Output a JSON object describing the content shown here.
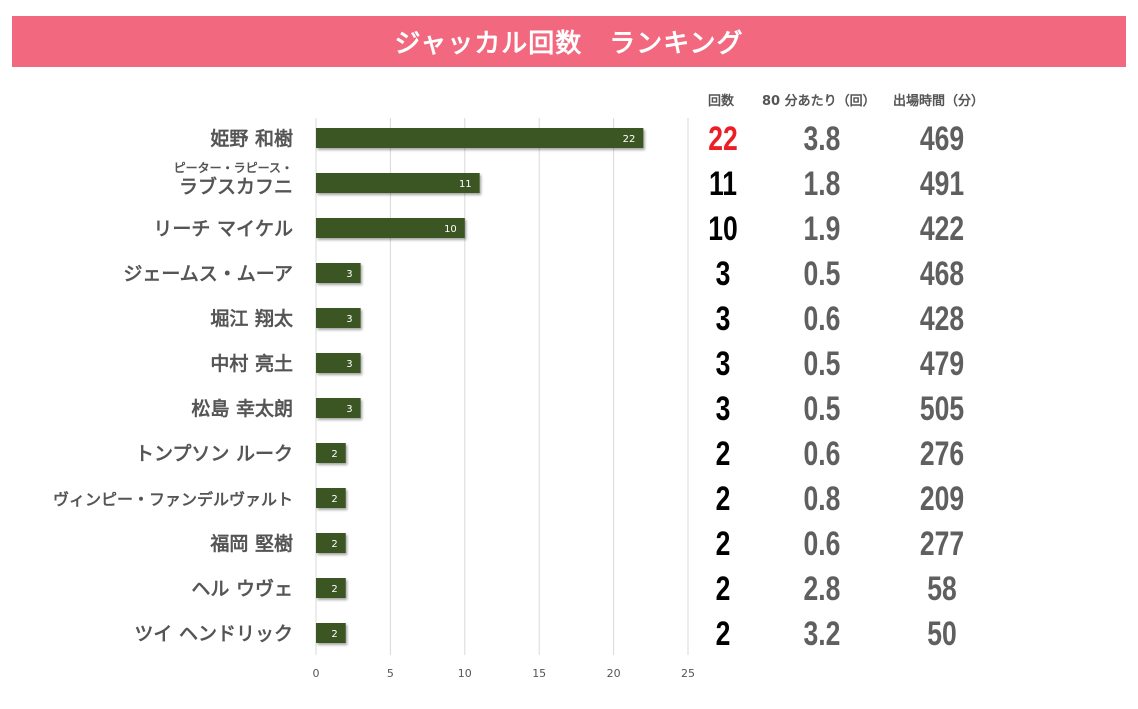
{
  "title": "ジャッカル回数　ランキング",
  "colors": {
    "banner": "#f2687e",
    "bar": "#3a5623",
    "top_count": "#ee1c24",
    "count": "#000000",
    "stat": "#5f5f5f",
    "grid": "#d9d9d9"
  },
  "table": {
    "headers": {
      "count": "回数",
      "per80": "80 分あたり（回）",
      "minutes": "出場時間（分）"
    },
    "rows": [
      {
        "name": "姫野 和樹",
        "count": "22",
        "per80": "3.8",
        "minutes": "469"
      },
      {
        "name_line1": "ピーター・ラピース・",
        "name": "ラブスカフニ",
        "count": "11",
        "per80": "1.8",
        "minutes": "491"
      },
      {
        "name": "リーチ マイケル",
        "count": "10",
        "per80": "1.9",
        "minutes": "422"
      },
      {
        "name": "ジェームス・ムーア",
        "count": "3",
        "per80": "0.5",
        "minutes": "468"
      },
      {
        "name": "堀江 翔太",
        "count": "3",
        "per80": "0.6",
        "minutes": "428"
      },
      {
        "name": "中村 亮土",
        "count": "3",
        "per80": "0.5",
        "minutes": "479"
      },
      {
        "name": "松島 幸太朗",
        "count": "3",
        "per80": "0.5",
        "minutes": "505"
      },
      {
        "name": "トンプソン ルーク",
        "count": "2",
        "per80": "0.6",
        "minutes": "276"
      },
      {
        "name": "ヴィンピー・ファンデルヴァルト",
        "count": "2",
        "per80": "0.8",
        "minutes": "209"
      },
      {
        "name": "福岡 堅樹",
        "count": "2",
        "per80": "0.6",
        "minutes": "277"
      },
      {
        "name": "ヘル ウヴェ",
        "count": "2",
        "per80": "2.8",
        "minutes": "58"
      },
      {
        "name": "ツイ ヘンドリック",
        "count": "2",
        "per80": "3.2",
        "minutes": "50"
      }
    ]
  },
  "chart_data": {
    "type": "bar",
    "orientation": "horizontal",
    "title": "ジャッカル回数　ランキング",
    "xlabel": "",
    "ylabel": "",
    "categories": [
      "姫野 和樹",
      "ピーター・ラピース・ラブスカフニ",
      "リーチ マイケル",
      "ジェームス・ムーア",
      "堀江 翔太",
      "中村 亮土",
      "松島 幸太朗",
      "トンプソン ルーク",
      "ヴィンピー・ファンデルヴァルト",
      "福岡 堅樹",
      "ヘル ウヴェ",
      "ツイ ヘンドリック"
    ],
    "values": [
      22,
      11,
      10,
      3,
      3,
      3,
      3,
      2,
      2,
      2,
      2,
      2
    ],
    "xlim": [
      0,
      25
    ],
    "xticks": [
      0,
      5,
      10,
      15,
      20,
      25
    ],
    "grid": true,
    "data_labels": true,
    "legend": "none"
  }
}
